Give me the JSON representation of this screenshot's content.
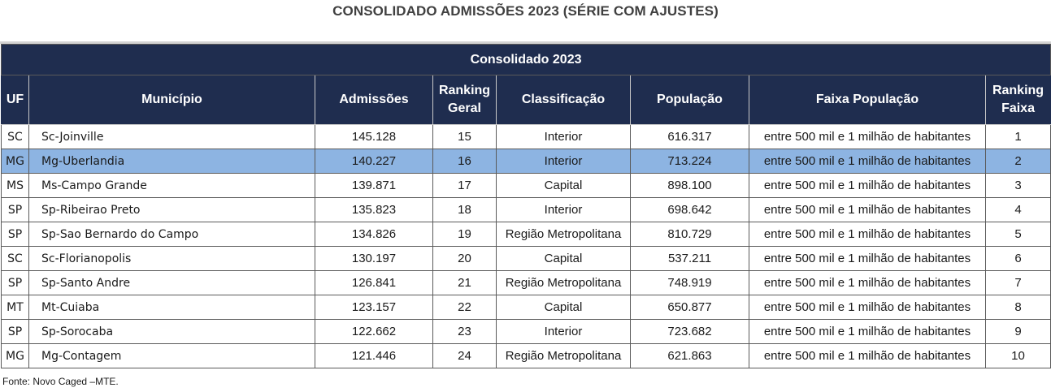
{
  "title": "CONSOLIDADO ADMISSÕES 2023 (SÉRIE COM AJUSTES)",
  "table": {
    "band_label": "Consolidado 2023",
    "columns": {
      "uf": "UF",
      "municipio": "Município",
      "admissoes": "Admissões",
      "ranking_geral_1": "Ranking",
      "ranking_geral_2": "Geral",
      "classificacao": "Classificação",
      "populacao": "População",
      "faixa_populacao": "Faixa População",
      "ranking_faixa_1": "Ranking",
      "ranking_faixa_2": "Faixa"
    },
    "highlight_color": "#8db4e2",
    "header_color": "#1f2d4f",
    "rows": [
      {
        "uf": "SC",
        "municipio": "Sc-Joinville",
        "admissoes": "145.128",
        "ranking_geral": "15",
        "classificacao": "Interior",
        "populacao": "616.317",
        "faixa": "entre 500 mil e 1 milhão de habitantes",
        "ranking_faixa": "1"
      },
      {
        "uf": "MG",
        "municipio": "Mg-Uberlandia",
        "admissoes": "140.227",
        "ranking_geral": "16",
        "classificacao": "Interior",
        "populacao": "713.224",
        "faixa": "entre 500 mil e 1 milhão de habitantes",
        "ranking_faixa": "2"
      },
      {
        "uf": "MS",
        "municipio": "Ms-Campo Grande",
        "admissoes": "139.871",
        "ranking_geral": "17",
        "classificacao": "Capital",
        "populacao": "898.100",
        "faixa": "entre 500 mil e 1 milhão de habitantes",
        "ranking_faixa": "3"
      },
      {
        "uf": "SP",
        "municipio": "Sp-Ribeirao Preto",
        "admissoes": "135.823",
        "ranking_geral": "18",
        "classificacao": "Interior",
        "populacao": "698.642",
        "faixa": "entre 500 mil e 1 milhão de habitantes",
        "ranking_faixa": "4"
      },
      {
        "uf": "SP",
        "municipio": "Sp-Sao Bernardo do Campo",
        "admissoes": "134.826",
        "ranking_geral": "19",
        "classificacao": "Região Metropolitana",
        "populacao": "810.729",
        "faixa": "entre 500 mil e 1 milhão de habitantes",
        "ranking_faixa": "5"
      },
      {
        "uf": "SC",
        "municipio": "Sc-Florianopolis",
        "admissoes": "130.197",
        "ranking_geral": "20",
        "classificacao": "Capital",
        "populacao": "537.211",
        "faixa": "entre 500 mil e 1 milhão de habitantes",
        "ranking_faixa": "6"
      },
      {
        "uf": "SP",
        "municipio": "Sp-Santo Andre",
        "admissoes": "126.841",
        "ranking_geral": "21",
        "classificacao": "Região Metropolitana",
        "populacao": "748.919",
        "faixa": "entre 500 mil e 1 milhão de habitantes",
        "ranking_faixa": "7"
      },
      {
        "uf": "MT",
        "municipio": "Mt-Cuiaba",
        "admissoes": "123.157",
        "ranking_geral": "22",
        "classificacao": "Capital",
        "populacao": "650.877",
        "faixa": "entre 500 mil e 1 milhão de habitantes",
        "ranking_faixa": "8"
      },
      {
        "uf": "SP",
        "municipio": "Sp-Sorocaba",
        "admissoes": "122.662",
        "ranking_geral": "23",
        "classificacao": "Interior",
        "populacao": "723.682",
        "faixa": "entre 500 mil e 1 milhão de habitantes",
        "ranking_faixa": "9"
      },
      {
        "uf": "MG",
        "municipio": "Mg-Contagem",
        "admissoes": "121.446",
        "ranking_geral": "24",
        "classificacao": "Região Metropolitana",
        "populacao": "621.863",
        "faixa": "entre 500 mil e 1 milhão de habitantes",
        "ranking_faixa": "10"
      }
    ],
    "highlighted_row": 1
  },
  "footer": {
    "source": "Fonte: Novo Caged –MTE."
  }
}
